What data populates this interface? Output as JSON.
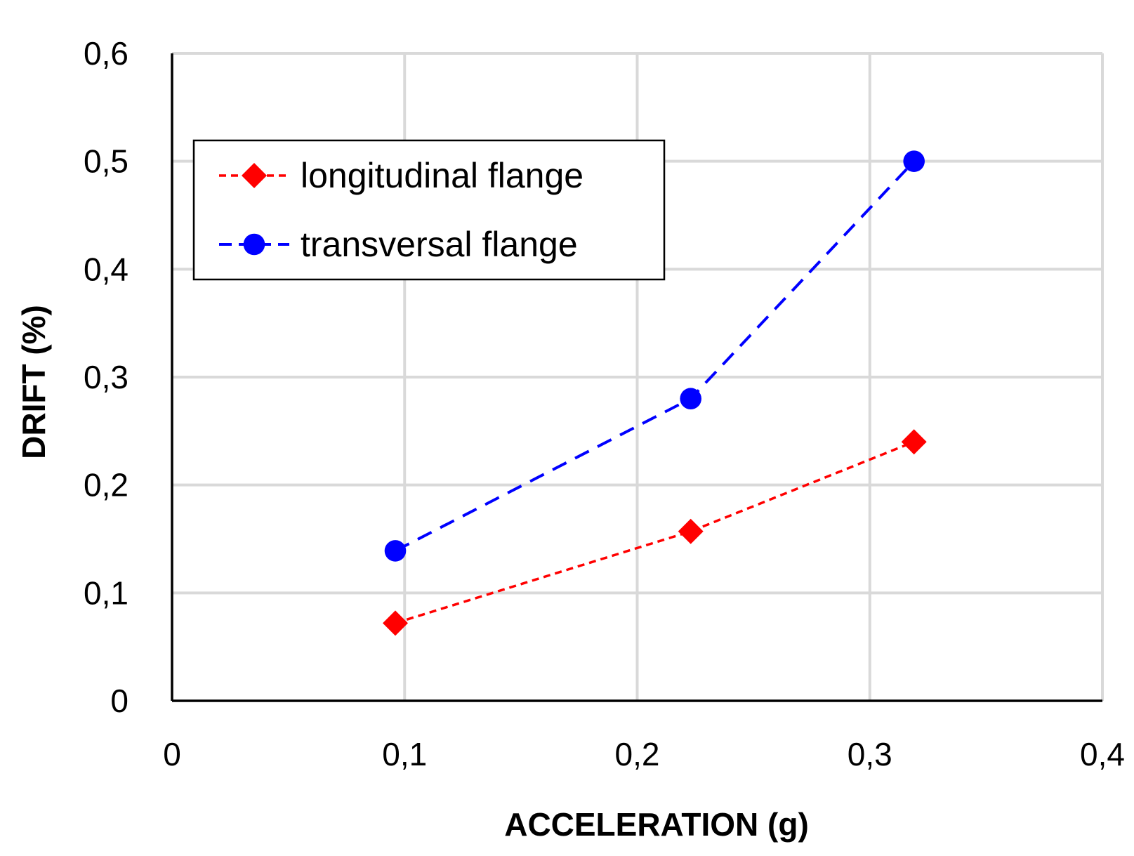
{
  "chart_data": {
    "type": "line",
    "title": "",
    "xlabel": "ACCELERATION (g)",
    "ylabel": "DRIFT (%)",
    "xlim": [
      0,
      0.4
    ],
    "ylim": [
      0,
      0.6
    ],
    "xticks": [
      0,
      0.1,
      0.2,
      0.3,
      0.4
    ],
    "yticks": [
      0,
      0.1,
      0.2,
      0.3,
      0.4,
      0.5,
      0.6
    ],
    "xtick_labels": [
      "0",
      "0,1",
      "0,2",
      "0,3",
      "0,4"
    ],
    "ytick_labels": [
      "0",
      "0,1",
      "0,2",
      "0,3",
      "0,4",
      "0,5",
      "0,6"
    ],
    "grid": true,
    "legend_position": "top-left",
    "series": [
      {
        "name": "longitudinal flange",
        "color": "#ff0000",
        "marker": "diamond",
        "line_style": "dashed",
        "x": [
          0.096,
          0.223,
          0.319
        ],
        "y": [
          0.072,
          0.157,
          0.24
        ]
      },
      {
        "name": "transversal flange",
        "color": "#0000ff",
        "marker": "circle",
        "line_style": "dashed",
        "x": [
          0.096,
          0.223,
          0.319
        ],
        "y": [
          0.139,
          0.28,
          0.5
        ]
      }
    ]
  }
}
